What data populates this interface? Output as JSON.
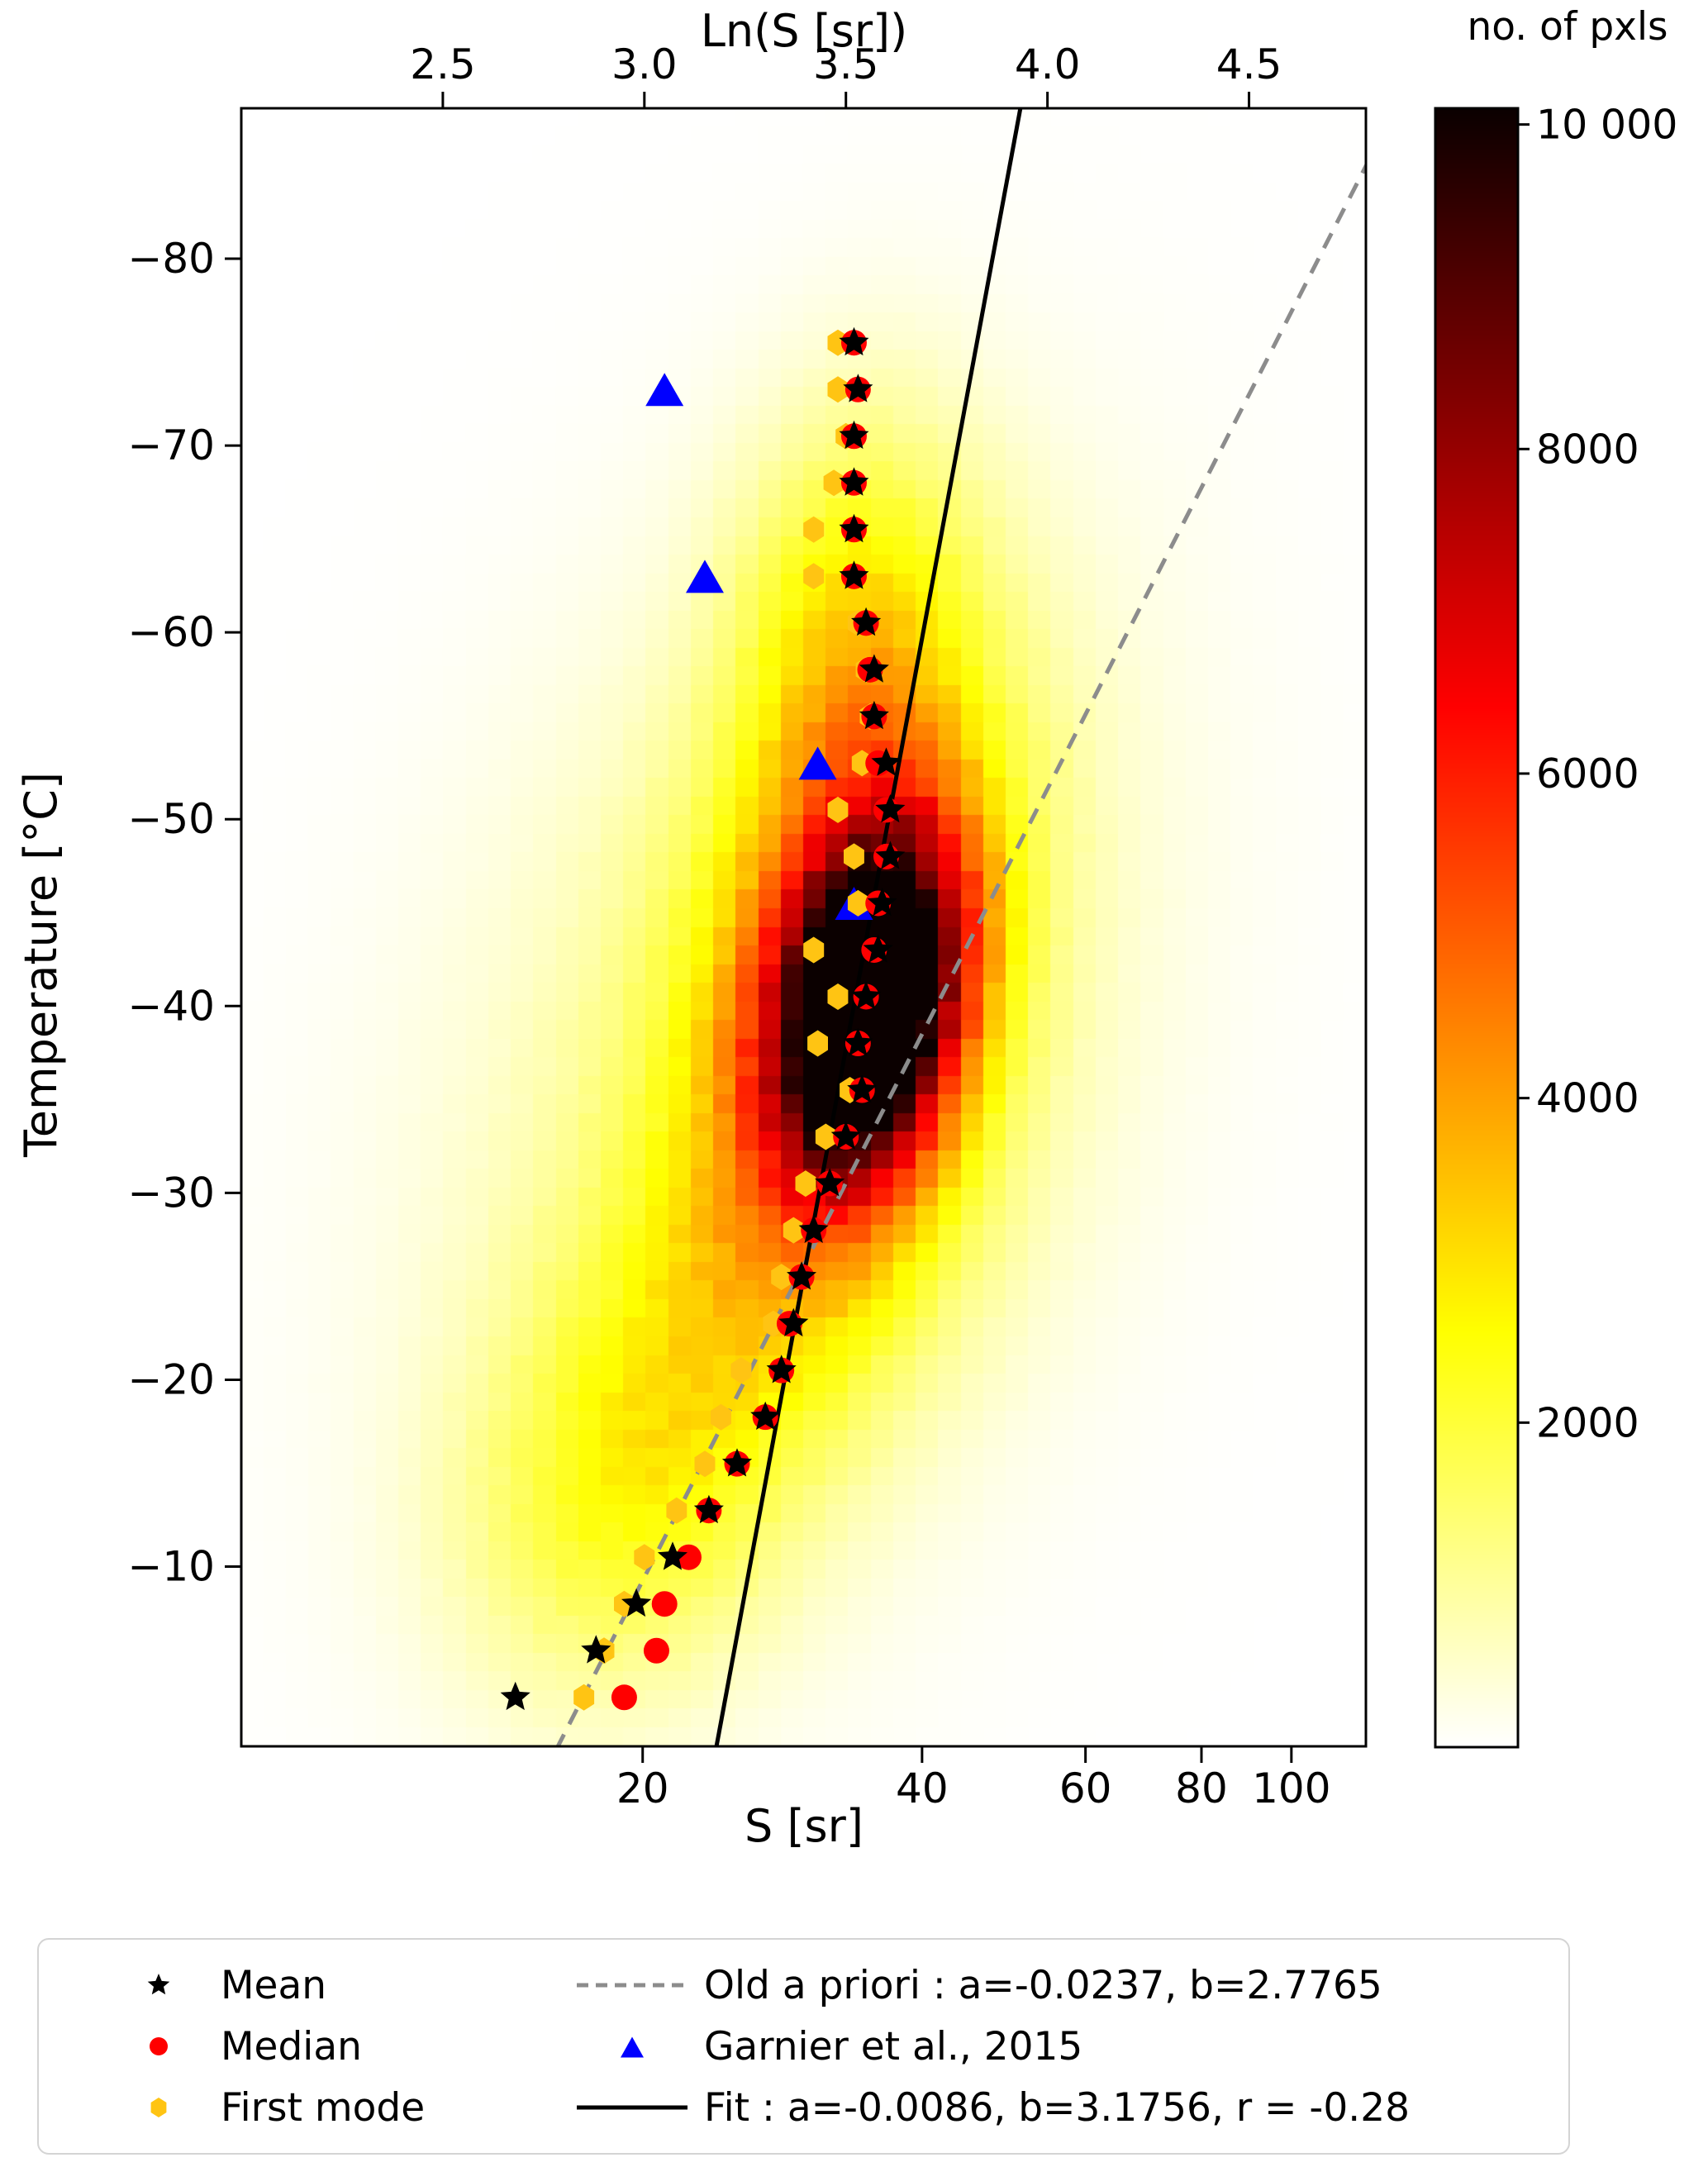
{
  "figure": {
    "top_axis_title": "Ln(S [sr])",
    "bottom_axis_title": "S [sr]",
    "left_axis_title": "Temperature [°C]",
    "colorbar_title": "no. of pxls"
  },
  "axes": {
    "x_scale": "log(S), bottom labeled in S [sr], top labeled in Ln(S)",
    "ln_range": [
      2.0,
      4.79
    ],
    "T_range_top_to_bottom": [
      -88.05,
      -0.38
    ],
    "top_ticks": [
      {
        "v": 2.5,
        "label": "2.5"
      },
      {
        "v": 3.0,
        "label": "3.0"
      },
      {
        "v": 3.5,
        "label": "3.5"
      },
      {
        "v": 4.0,
        "label": "4.0"
      },
      {
        "v": 4.5,
        "label": "4.5"
      }
    ],
    "bottom_ticks": [
      {
        "v": 20,
        "label": "20"
      },
      {
        "v": 40,
        "label": "40"
      },
      {
        "v": 60,
        "label": "60"
      },
      {
        "v": 80,
        "label": "80"
      },
      {
        "v": 100,
        "label": "100"
      }
    ],
    "left_ticks": [
      {
        "v": -80,
        "label": "−80"
      },
      {
        "v": -70,
        "label": "−70"
      },
      {
        "v": -60,
        "label": "−60"
      },
      {
        "v": -50,
        "label": "−50"
      },
      {
        "v": -40,
        "label": "−40"
      },
      {
        "v": -30,
        "label": "−30"
      },
      {
        "v": -20,
        "label": "−20"
      },
      {
        "v": -10,
        "label": "−10"
      }
    ]
  },
  "colorbar": {
    "title": "no. of pxls",
    "colormap": "hot_r",
    "vmin": 0,
    "vmax": 10100,
    "ticks": [
      {
        "v": 2000,
        "label": "2000"
      },
      {
        "v": 4000,
        "label": "4000"
      },
      {
        "v": 6000,
        "label": "6000"
      },
      {
        "v": 8000,
        "label": "8000"
      },
      {
        "v": 10000,
        "label": "10 000"
      }
    ]
  },
  "chart_data": {
    "type": "heatmap",
    "title": "",
    "xlabel": "S [sr]",
    "ylabel": "Temperature [°C]",
    "y_axis_inverted": true,
    "colors": {
      "mean": "#000000",
      "median": "#ff0000",
      "first_mode": "#ffc413",
      "garnier": "#0000ff",
      "fit_line": "#000000",
      "old_a_priori_line": "#8c8c8c"
    },
    "temperature_levels": [
      -75.5,
      -73,
      -70.5,
      -68,
      -65.5,
      -63,
      -60.5,
      -58,
      -55.5,
      -53,
      -50.5,
      -48,
      -45.5,
      -43,
      -40.5,
      -38,
      -35.5,
      -33,
      -30.5,
      -28,
      -25.5,
      -23,
      -20.5,
      -18,
      -15.5,
      -13,
      -10.5,
      -8,
      -5.5,
      -3
    ],
    "series": [
      {
        "name": "Mean",
        "marker": "star",
        "lnS": [
          3.52,
          3.53,
          3.52,
          3.52,
          3.52,
          3.52,
          3.55,
          3.57,
          3.57,
          3.6,
          3.61,
          3.61,
          3.59,
          3.58,
          3.55,
          3.53,
          3.54,
          3.5,
          3.46,
          3.42,
          3.39,
          3.37,
          3.34,
          3.3,
          3.23,
          3.16,
          3.07,
          2.98,
          2.88,
          2.68
        ]
      },
      {
        "name": "Median",
        "marker": "circle",
        "lnS": [
          3.52,
          3.53,
          3.52,
          3.52,
          3.52,
          3.52,
          3.55,
          3.56,
          3.57,
          3.58,
          3.6,
          3.6,
          3.58,
          3.57,
          3.55,
          3.53,
          3.54,
          3.5,
          3.46,
          3.42,
          3.39,
          3.36,
          3.34,
          3.3,
          3.23,
          3.16,
          3.11,
          3.05,
          3.03,
          2.95
        ]
      },
      {
        "name": "First mode",
        "marker": "hexagon",
        "lnS": [
          3.48,
          3.48,
          3.5,
          3.47,
          3.42,
          3.42,
          3.53,
          3.55,
          3.56,
          3.54,
          3.48,
          3.52,
          3.53,
          3.42,
          3.48,
          3.43,
          3.51,
          3.45,
          3.4,
          3.37,
          3.34,
          3.32,
          3.24,
          3.19,
          3.15,
          3.08,
          3.0,
          2.95,
          2.9,
          2.85
        ]
      }
    ],
    "garnier_points": [
      {
        "T": -73,
        "lnS": 3.05
      },
      {
        "T": -63,
        "lnS": 3.15
      },
      {
        "T": -53,
        "lnS": 3.43
      },
      {
        "T": -45.5,
        "lnS": 3.52
      }
    ],
    "lines": [
      {
        "name": "Old a priori",
        "style": "dashed",
        "a": -0.0237,
        "b": 2.7765,
        "equation": "ln(S)=a*T+b"
      },
      {
        "name": "Fit",
        "style": "solid",
        "a": -0.0086,
        "b": 3.1756,
        "r": -0.28,
        "equation": "ln(S)=a*T+b"
      }
    ],
    "heatmap": {
      "units": "no. of pxls",
      "representation": "gaussian_mixture_approximation_of_2d_histogram",
      "bins_x": 50,
      "bins_y": 88,
      "peak_value": 10000,
      "components": [
        {
          "mu_ln": 3.56,
          "mu_T": -40,
          "sig_ln": 0.16,
          "sig_T": 6.5,
          "rho": -0.25,
          "amp": 10800
        },
        {
          "mu_ln": 3.5,
          "mu_T": -42,
          "sig_ln": 0.28,
          "sig_T": 11,
          "rho": -0.3,
          "amp": 3500
        },
        {
          "mu_ln": 3.35,
          "mu_T": -38,
          "sig_ln": 0.55,
          "sig_T": 18,
          "rho": -0.3,
          "amp": 1200
        },
        {
          "mu_ln": 3.52,
          "mu_T": -60,
          "sig_ln": 0.2,
          "sig_T": 8,
          "rho": -0.1,
          "amp": 2200
        },
        {
          "mu_ln": 2.95,
          "mu_T": -13,
          "sig_ln": 0.27,
          "sig_T": 7,
          "rho": -0.15,
          "amp": 1600
        },
        {
          "mu_ln": 3.25,
          "mu_T": -24,
          "sig_ln": 0.35,
          "sig_T": 8,
          "rho": -0.35,
          "amp": 1500
        }
      ]
    }
  },
  "legend": {
    "items": [
      {
        "marker": "star",
        "color": "#000000",
        "label": "Mean"
      },
      {
        "marker": "circle",
        "color": "#ff0000",
        "label": "Median"
      },
      {
        "marker": "hexagon",
        "color": "#ffc413",
        "label": "First mode"
      },
      {
        "marker": "dashed-line",
        "color": "#8c8c8c",
        "label": "Old a priori : a=-0.0237, b=2.7765"
      },
      {
        "marker": "triangle",
        "color": "#0000ff",
        "label": "Garnier et al., 2015"
      },
      {
        "marker": "solid-line",
        "color": "#000000",
        "label": "Fit : a=-0.0086, b=3.1756, r = -0.28"
      }
    ]
  }
}
